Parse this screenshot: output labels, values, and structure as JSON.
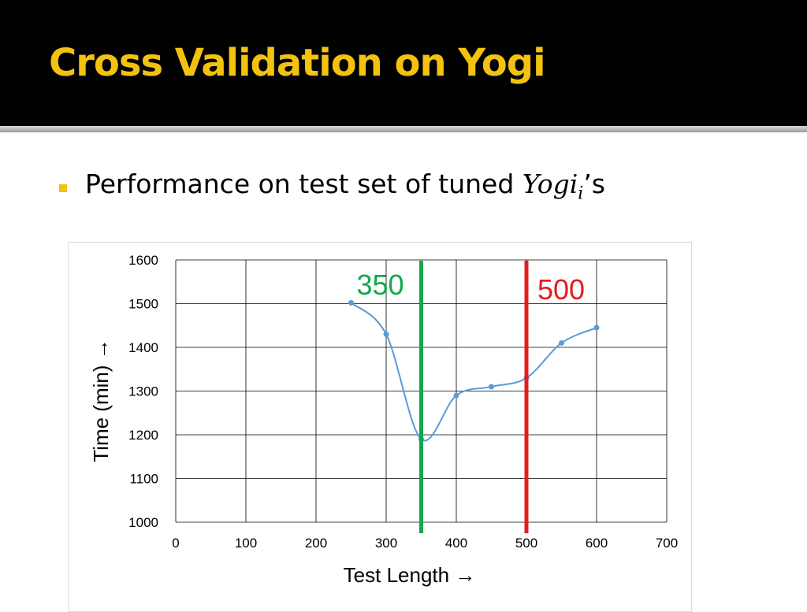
{
  "slide": {
    "title": "Cross Validation on Yogi",
    "bullet": {
      "text": "Performance on test set of tuned ",
      "math_base": "Yogi",
      "math_sub": "i",
      "suffix": "’s"
    }
  },
  "colors": {
    "title": "#f3c20f",
    "bullet_marker": "#f3c20f",
    "series": "#5b9bd5",
    "marker_350": "#12a84b",
    "marker_500": "#e51c1c"
  },
  "chart_data": {
    "type": "line",
    "smoothed": true,
    "xlabel": "Test Length  →",
    "ylabel": "Time (min)  →",
    "xlim": [
      0,
      700
    ],
    "ylim": [
      1000,
      1600
    ],
    "x_ticks": [
      0,
      100,
      200,
      300,
      400,
      500,
      600,
      700
    ],
    "y_ticks": [
      1000,
      1100,
      1200,
      1300,
      1400,
      1500,
      1600
    ],
    "grid": true,
    "series": [
      {
        "x": [
          250,
          300,
          350,
          400,
          450,
          500,
          550,
          600
        ],
        "y": [
          1502,
          1430,
          1190,
          1290,
          1310,
          1330,
          1410,
          1445
        ]
      }
    ],
    "annotations": [
      {
        "x": 350,
        "label": "350",
        "color": "#12a84b"
      },
      {
        "x": 500,
        "label": "500",
        "color": "#e51c1c"
      }
    ]
  }
}
